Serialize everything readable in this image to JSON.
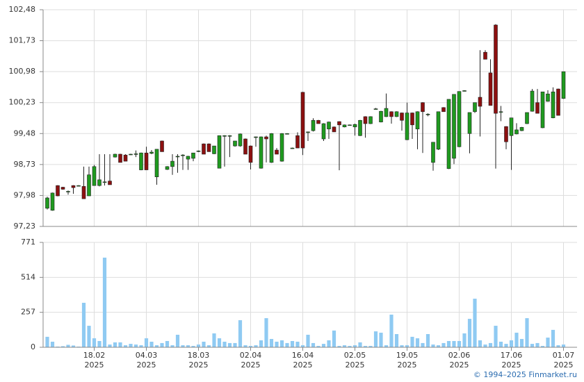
{
  "source": "© 1994–2025 Finmarket.ru",
  "chart_data": [
    {
      "type": "candlestick",
      "up_color": "#1f9a1f",
      "down_color": "#8c1010",
      "grid": true,
      "ylim": [
        97.23,
        102.48
      ],
      "yticks": [
        {
          "value": 97.23,
          "label": "97,23"
        },
        {
          "value": 97.98,
          "label": "97,98"
        },
        {
          "value": 98.73,
          "label": "98,73"
        },
        {
          "value": 99.48,
          "label": "99,48"
        },
        {
          "value": 100.23,
          "label": "100,23"
        },
        {
          "value": 100.98,
          "label": "100,98"
        },
        {
          "value": 101.73,
          "label": "101,73"
        },
        {
          "value": 102.48,
          "label": "102,48"
        }
      ],
      "open": [
        97.67,
        97.62,
        98.22,
        98.18,
        98.07,
        98.22,
        98.21,
        98.2,
        97.97,
        98.22,
        98.22,
        98.3,
        98.33,
        98.91,
        98.98,
        98.96,
        98.97,
        98.98,
        98.6,
        99.01,
        99.0,
        98.43,
        99.3,
        98.61,
        98.68,
        98.92,
        98.95,
        98.86,
        98.88,
        99.05,
        99.23,
        99.23,
        98.99,
        98.64,
        99.42,
        99.42,
        99.18,
        99.18,
        99.35,
        99.18,
        99.39,
        98.64,
        99.4,
        98.78,
        99.08,
        98.81,
        99.47,
        99.12,
        99.43,
        100.48,
        99.51,
        99.55,
        99.8,
        99.35,
        99.59,
        99.64,
        99.77,
        99.64,
        99.68,
        99.64,
        99.43,
        99.89,
        99.72,
        100.08,
        99.76,
        99.89,
        100.01,
        99.89,
        99.98,
        99.33,
        99.98,
        99.59,
        100.23,
        99.94,
        98.78,
        99.1,
        100.11,
        98.63,
        98.88,
        99.16,
        100.51,
        99.48,
        100.01,
        100.36,
        101.45,
        100.95,
        102.11,
        100.0,
        99.65,
        99.43,
        99.47,
        99.55,
        99.72,
        100.02,
        100.23,
        99.62,
        100.26,
        99.86,
        100.56,
        100.33
      ],
      "high": [
        97.95,
        98.05,
        98.23,
        98.19,
        98.1,
        98.23,
        98.23,
        98.68,
        98.68,
        98.72,
        98.98,
        98.98,
        98.98,
        98.99,
        98.99,
        98.98,
        98.99,
        99.07,
        99.02,
        99.16,
        99.08,
        99.1,
        99.31,
        98.69,
        98.98,
        98.98,
        98.98,
        98.94,
        99.01,
        99.07,
        99.24,
        99.24,
        99.18,
        99.43,
        99.44,
        99.44,
        99.3,
        99.48,
        99.36,
        99.19,
        99.41,
        99.41,
        99.43,
        99.49,
        99.13,
        99.49,
        99.49,
        99.14,
        99.51,
        100.49,
        99.53,
        99.85,
        99.81,
        99.73,
        99.77,
        99.65,
        99.78,
        99.7,
        99.7,
        99.72,
        99.81,
        99.9,
        99.9,
        100.1,
        100.03,
        100.45,
        100.02,
        100.02,
        99.99,
        100.23,
        99.99,
        100.02,
        100.24,
        99.97,
        99.27,
        100.01,
        100.12,
        100.31,
        100.43,
        100.5,
        100.53,
        99.99,
        100.23,
        101.5,
        101.5,
        101.28,
        102.13,
        100.15,
        99.66,
        99.86,
        99.73,
        99.64,
        99.99,
        100.56,
        100.56,
        100.49,
        100.53,
        100.6,
        100.57,
        100.98
      ],
      "low": [
        97.64,
        97.61,
        97.96,
        98.12,
        98.0,
        98.02,
        98.2,
        97.9,
        97.97,
        98.22,
        98.2,
        98.22,
        98.24,
        98.9,
        98.78,
        98.81,
        98.96,
        98.91,
        98.59,
        98.6,
        98.98,
        98.24,
        99.04,
        98.6,
        98.48,
        98.53,
        98.6,
        98.6,
        98.81,
        99.03,
        98.98,
        99.04,
        98.98,
        98.64,
        98.68,
        98.91,
        99.16,
        99.16,
        98.98,
        98.61,
        99.16,
        98.63,
        98.78,
        98.77,
        98.98,
        98.8,
        99.46,
        99.11,
        99.13,
        98.96,
        99.3,
        99.53,
        99.72,
        99.3,
        99.35,
        99.52,
        98.59,
        99.63,
        99.67,
        99.43,
        99.42,
        99.38,
        99.71,
        100.07,
        99.75,
        99.88,
        99.72,
        99.88,
        99.55,
        99.32,
        99.35,
        99.1,
        99.01,
        99.9,
        98.58,
        99.08,
        100.01,
        98.62,
        98.74,
        99.15,
        100.5,
        99.0,
        99.98,
        99.41,
        101.28,
        100.16,
        98.63,
        99.78,
        99.1,
        98.6,
        99.46,
        99.54,
        99.71,
        100.01,
        99.97,
        99.61,
        100.25,
        99.85,
        99.92,
        100.32
      ],
      "close": [
        97.92,
        98.04,
        97.97,
        98.13,
        98.08,
        98.17,
        98.22,
        97.9,
        98.48,
        98.68,
        98.36,
        98.31,
        98.24,
        98.98,
        98.78,
        98.81,
        98.98,
        98.99,
        99.01,
        98.6,
        99.03,
        99.1,
        99.04,
        98.68,
        98.81,
        98.93,
        98.96,
        98.93,
        99.01,
        99.06,
        98.98,
        99.04,
        99.18,
        99.43,
        99.43,
        99.43,
        99.3,
        99.47,
        98.98,
        98.78,
        99.4,
        99.4,
        99.35,
        99.48,
        98.98,
        99.48,
        99.48,
        99.13,
        99.13,
        99.13,
        99.52,
        99.8,
        99.72,
        99.72,
        99.76,
        99.52,
        99.69,
        99.69,
        99.69,
        99.7,
        99.8,
        99.72,
        99.89,
        100.08,
        100.02,
        100.09,
        99.89,
        100.01,
        99.8,
        99.98,
        99.69,
        100.01,
        100.01,
        99.95,
        99.27,
        100.01,
        100.01,
        100.31,
        100.43,
        100.5,
        100.52,
        99.99,
        100.23,
        100.14,
        101.28,
        100.16,
        99.97,
        100.01,
        99.28,
        99.86,
        99.57,
        99.63,
        99.99,
        100.51,
        99.97,
        100.49,
        100.44,
        100.49,
        99.92,
        100.98
      ]
    },
    {
      "type": "bar",
      "color": "#8fcaf2",
      "grid": true,
      "ylim": [
        0,
        771
      ],
      "yticks": [
        0,
        257,
        514,
        771
      ],
      "categories": [
        null,
        null,
        null,
        null,
        null,
        null,
        null,
        null,
        null,
        "18.02\n2025",
        null,
        null,
        null,
        null,
        null,
        null,
        null,
        null,
        null,
        "04.03\n2025",
        null,
        null,
        null,
        null,
        null,
        null,
        null,
        null,
        null,
        "18.03\n2025",
        null,
        null,
        null,
        null,
        null,
        null,
        null,
        null,
        null,
        "02.04\n2025",
        null,
        null,
        null,
        null,
        null,
        null,
        null,
        null,
        null,
        "16.04\n2025",
        null,
        null,
        null,
        null,
        null,
        null,
        null,
        null,
        null,
        "02.05\n2025",
        null,
        null,
        null,
        null,
        null,
        null,
        null,
        null,
        null,
        "19.05\n2025",
        null,
        null,
        null,
        null,
        null,
        null,
        null,
        null,
        null,
        "02.06\n2025",
        null,
        null,
        null,
        null,
        null,
        null,
        null,
        null,
        null,
        "17.06\n2025",
        null,
        null,
        null,
        null,
        null,
        null,
        null,
        null,
        null,
        "01.07\n2025"
      ],
      "values": [
        77,
        41,
        5,
        8,
        18,
        13,
        5,
        327,
        158,
        66,
        46,
        659,
        20,
        36,
        36,
        15,
        25,
        20,
        15,
        66,
        41,
        15,
        31,
        46,
        15,
        92,
        15,
        15,
        10,
        20,
        41,
        15,
        102,
        66,
        41,
        31,
        31,
        199,
        15,
        10,
        15,
        51,
        214,
        61,
        41,
        51,
        31,
        46,
        41,
        15,
        92,
        31,
        10,
        25,
        51,
        123,
        10,
        15,
        10,
        15,
        36,
        10,
        10,
        117,
        107,
        15,
        240,
        97,
        15,
        15,
        77,
        66,
        31,
        97,
        20,
        15,
        31,
        46,
        46,
        46,
        102,
        209,
        357,
        51,
        20,
        31,
        158,
        41,
        25,
        51,
        107,
        61,
        214,
        25,
        31,
        10,
        71,
        128,
        15,
        20
      ]
    }
  ]
}
